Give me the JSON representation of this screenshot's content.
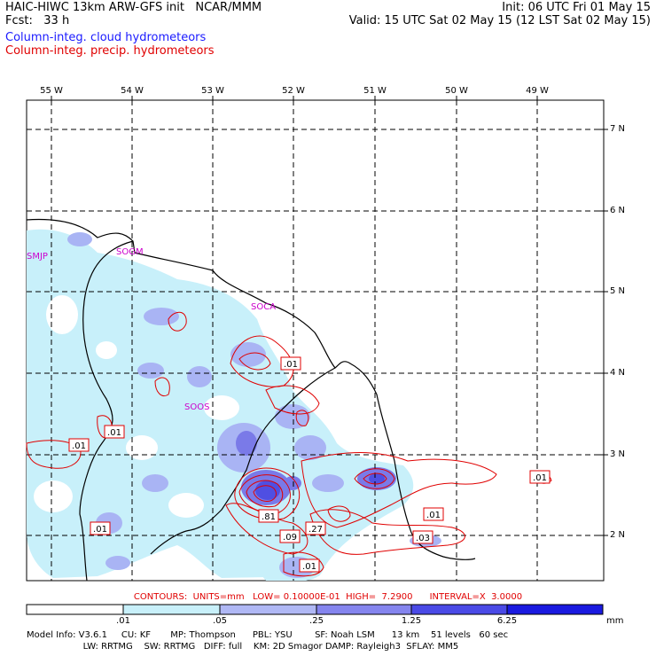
{
  "header": {
    "title": "HAIC-HIWC 13km ARW-GFS init   NCAR/MMM",
    "init": "Init: 06 UTC Fri 01 May 15",
    "fcst": "Fcst:   33 h",
    "valid": "Valid: 15 UTC Sat 02 May 15 (12 LST Sat 02 May 15)"
  },
  "legend": {
    "cloud": "Column-integ. cloud hydrometeors",
    "precip": "Column-integ. precip. hydrometeors",
    "cloud_color": "#1a1aff",
    "precip_color": "#e00000"
  },
  "axes": {
    "lon_labels": [
      "55 W",
      "54 W",
      "53 W",
      "52 W",
      "51 W",
      "50 W",
      "49 W"
    ],
    "lat_labels": [
      "7 N",
      "6 N",
      "5 N",
      "4 N",
      "3 N",
      "2 N"
    ]
  },
  "stations": [
    "SMJP",
    "SOGM",
    "SOCA",
    "SOOS"
  ],
  "contour_labels": [
    ".01",
    ".01",
    ".01",
    ".01",
    ".01",
    ".01",
    ".01",
    ".01",
    ".81",
    ".27",
    ".09",
    ".03"
  ],
  "footer": {
    "contours": "CONTOURS:  UNITS=mm   LOW= 0.10000E-01  HIGH=  7.2900      INTERVAL=X  3.0000",
    "colorbar_ticks": [
      ".01",
      ".05",
      ".25",
      "1.25",
      "6.25"
    ],
    "colorbar_colors": [
      "#ffffff",
      "#c8f0fa",
      "#b0b8f5",
      "#8585ee",
      "#4a4ae6",
      "#1a1ae0"
    ],
    "units": "mm",
    "info1": "Model Info: V3.6.1     CU: KF       MP: Thompson      PBL: YSU        SF: Noah LSM      13 km    51 levels   60 sec",
    "info2": "                    LW: RRTMG    SW: RRTMG   DIFF: full    KM: 2D Smagor DAMP: Rayleigh3  SFLAY: MM5"
  }
}
